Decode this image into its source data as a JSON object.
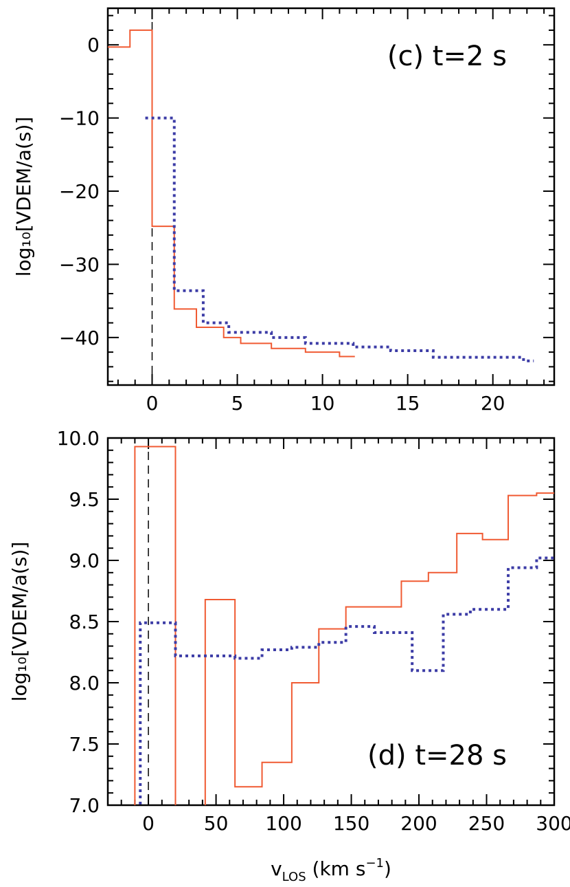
{
  "chart_data": [
    {
      "type": "line",
      "panel_label": "(c) t=2 s",
      "xlabel": "",
      "ylabel": "log₁₀[VDEM/a(s)]",
      "xlim": [
        -2.6,
        23.6
      ],
      "ylim": [
        -46.5,
        5
      ],
      "xticks": [
        0,
        5,
        10,
        15,
        20
      ],
      "yticks": [
        0,
        -10,
        -20,
        -30,
        -40
      ],
      "ytick_labels": [
        "0",
        "−10",
        "−20",
        "−30",
        "−40"
      ],
      "grid": false,
      "vline_x": 0,
      "series": [
        {
          "style": "solid",
          "color": "#f05a32",
          "x": [
            -2.6,
            -1.3,
            -1.3,
            0,
            0,
            1.3,
            1.3,
            2.6,
            2.6,
            4.2,
            4.2,
            5.2,
            5.2,
            7.0,
            7.0,
            9.0,
            9.0,
            11.0,
            11.0,
            11.9
          ],
          "y": [
            -0.3,
            -0.3,
            2,
            2,
            -24.8,
            -24.8,
            -36.1,
            -36.1,
            -38.6,
            -38.6,
            -40.0,
            -40.0,
            -40.8,
            -40.8,
            -41.5,
            -41.5,
            -42.0,
            -42.0,
            -42.6,
            -42.6
          ]
        },
        {
          "style": "dotted",
          "color": "#3c3ca6",
          "x": [
            -0.4,
            1.3,
            1.3,
            3.0,
            3.0,
            4.5,
            4.5,
            7.0,
            7.0,
            9.0,
            9.0,
            11.8,
            11.8,
            14.0,
            14.0,
            16.5,
            16.5,
            21.8,
            21.8,
            22.4
          ],
          "y": [
            -10,
            -10,
            -33.6,
            -33.6,
            -38.0,
            -38.0,
            -39.3,
            -39.3,
            -40.0,
            -40.0,
            -40.8,
            -40.8,
            -41.3,
            -41.3,
            -41.8,
            -41.8,
            -42.7,
            -42.7,
            -43.2,
            -43.2
          ]
        }
      ]
    },
    {
      "type": "line",
      "panel_label": "(d) t=28 s",
      "xlabel_main": "v",
      "xlabel_sub": "LOS",
      "xlabel_rest": " (km s",
      "xlabel_sup": "−1",
      "xlabel_end": ")",
      "ylabel": "log₁₀[VDEM/a(s)]",
      "xlim": [
        -30,
        300
      ],
      "ylim": [
        7.0,
        10.0
      ],
      "xticks": [
        0,
        50,
        100,
        150,
        200,
        250,
        300
      ],
      "yticks": [
        7.0,
        7.5,
        8.0,
        8.5,
        9.0,
        9.5,
        10.0
      ],
      "ytick_labels": [
        "7.0",
        "7.5",
        "8.0",
        "8.5",
        "9.0",
        "9.5",
        "10.0"
      ],
      "grid": false,
      "vline_x": 0,
      "series": [
        {
          "style": "solid",
          "color": "#f05a32",
          "x": [
            -10,
            -10,
            20,
            20,
            20,
            42,
            42,
            42,
            64,
            64,
            84,
            84,
            106,
            106,
            126,
            126,
            146,
            146,
            167,
            167,
            187,
            187,
            207,
            207,
            228,
            228,
            247,
            247,
            266,
            266,
            287,
            287,
            300
          ],
          "y": [
            6.5,
            9.93,
            9.93,
            6.5,
            null,
            6.5,
            8.68,
            8.68,
            8.68,
            7.15,
            7.15,
            7.35,
            7.35,
            8.0,
            8.0,
            8.44,
            8.44,
            8.62,
            8.62,
            8.62,
            8.62,
            8.83,
            8.83,
            8.9,
            8.9,
            9.22,
            9.22,
            9.17,
            9.17,
            9.53,
            9.53,
            9.55,
            9.55
          ]
        },
        {
          "style": "dotted",
          "color": "#3c3ca6",
          "x": [
            -6,
            -6,
            0,
            0,
            20,
            20,
            64,
            64,
            84,
            84,
            106,
            106,
            126,
            126,
            146,
            146,
            167,
            167,
            187,
            187,
            195,
            195,
            218,
            218,
            238,
            238,
            266,
            266,
            287,
            287,
            300
          ],
          "y": [
            6.5,
            8.49,
            8.49,
            8.49,
            8.49,
            8.22,
            8.22,
            8.2,
            8.2,
            8.27,
            8.27,
            8.29,
            8.29,
            8.33,
            8.33,
            8.46,
            8.46,
            8.41,
            8.41,
            8.41,
            8.41,
            8.1,
            8.1,
            8.56,
            8.56,
            8.6,
            8.6,
            8.94,
            8.94,
            9.02,
            9.02
          ]
        }
      ]
    }
  ]
}
